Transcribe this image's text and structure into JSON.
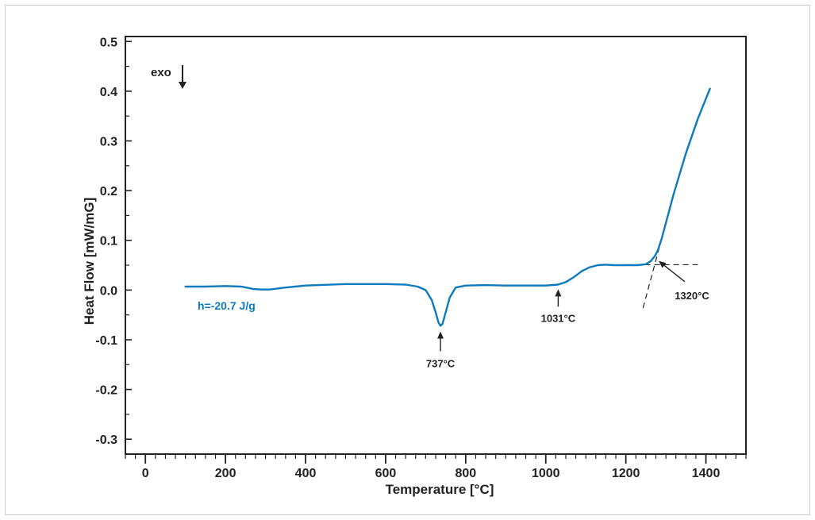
{
  "colors": {
    "series": "#0d7abf",
    "axis": "#222222"
  },
  "chart_data": {
    "type": "line",
    "title": "",
    "xlabel": "Temperature [°C]",
    "ylabel": "Heat Flow [mW/mG]",
    "xlim": [
      -50,
      1500
    ],
    "ylim": [
      -0.33,
      0.51
    ],
    "xticks": [
      0,
      200,
      400,
      600,
      800,
      1000,
      1200,
      1400
    ],
    "xtick_labels": [
      "0",
      "200",
      "400",
      "600",
      "800",
      "1000",
      "1200",
      "1400"
    ],
    "yticks": [
      0.5,
      0.4,
      0.3,
      0.2,
      0.1,
      0.0,
      -0.1,
      -0.2,
      -0.3
    ],
    "ytick_labels": [
      "0.5",
      "0.4",
      "0.3",
      "0.2",
      "0.1",
      "0.0",
      "-0.1",
      "-0.2",
      "-0.3"
    ],
    "grid": false,
    "exo_label": "exo",
    "enthalpy_label": "h=-20.7 J/g",
    "series": [
      {
        "x": [
          100,
          150,
          200,
          240,
          270,
          290,
          310,
          350,
          400,
          500,
          600,
          650,
          680,
          700,
          715,
          725,
          732,
          737,
          742,
          750,
          760,
          775,
          800,
          850,
          900,
          950,
          1000,
          1030,
          1050,
          1070,
          1090,
          1110,
          1130,
          1150,
          1170,
          1200,
          1230,
          1250,
          1262,
          1272,
          1280,
          1290,
          1300,
          1320,
          1350,
          1380,
          1410
        ],
        "y": [
          0.007,
          0.007,
          0.008,
          0.007,
          0.002,
          0.001,
          0.001,
          0.005,
          0.009,
          0.012,
          0.012,
          0.011,
          0.007,
          0.0,
          -0.02,
          -0.045,
          -0.065,
          -0.072,
          -0.068,
          -0.045,
          -0.015,
          0.005,
          0.009,
          0.01,
          0.009,
          0.009,
          0.009,
          0.011,
          0.016,
          0.026,
          0.038,
          0.046,
          0.05,
          0.051,
          0.05,
          0.05,
          0.05,
          0.052,
          0.058,
          0.068,
          0.08,
          0.105,
          0.135,
          0.195,
          0.275,
          0.345,
          0.405
        ]
      }
    ],
    "annotations": [
      {
        "label": "737°C",
        "x": 737
      },
      {
        "label": "1031°C",
        "x": 1031
      },
      {
        "label": "1320°C",
        "x": 1272
      }
    ]
  }
}
